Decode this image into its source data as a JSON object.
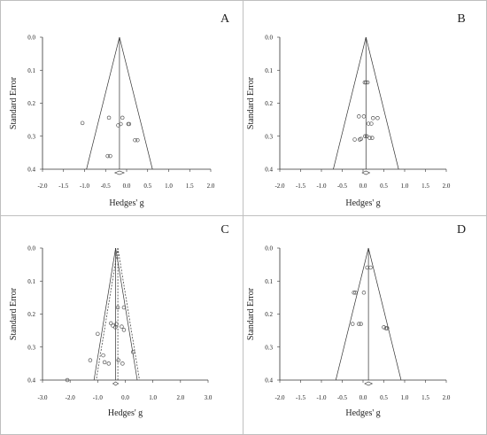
{
  "colors": {
    "border": "#bfbfbf",
    "axis": "#333333",
    "funnel": "#333333",
    "point": "#555555"
  },
  "chart_data": [
    {
      "type": "scatter",
      "panel": "A",
      "xlabel": "Hedges' g",
      "ylabel": "Standard Error",
      "xlim": [
        -2.0,
        2.0
      ],
      "ylim": [
        0.0,
        0.4
      ],
      "y_inverted": true,
      "xticks": [
        "-2.0",
        "-1.5",
        "-1.0",
        "-0.5",
        "0.0",
        "0.5",
        "1.0",
        "1.5",
        "2.0"
      ],
      "yticks": [
        "0.0",
        "0.1",
        "0.2",
        "0.3",
        "0.4"
      ],
      "funnel_center": -0.17,
      "funnel_style": "solid",
      "summary_estimate": -0.17,
      "summary_ci": [
        -0.28,
        -0.06
      ],
      "points": [
        {
          "x": -1.05,
          "y": 0.26
        },
        {
          "x": -0.42,
          "y": 0.244
        },
        {
          "x": -0.1,
          "y": 0.244
        },
        {
          "x": -0.14,
          "y": 0.263
        },
        {
          "x": -0.2,
          "y": 0.267
        },
        {
          "x": 0.04,
          "y": 0.263
        },
        {
          "x": 0.06,
          "y": 0.263
        },
        {
          "x": 0.2,
          "y": 0.312
        },
        {
          "x": 0.26,
          "y": 0.312
        },
        {
          "x": -0.45,
          "y": 0.36
        },
        {
          "x": -0.39,
          "y": 0.36
        }
      ]
    },
    {
      "type": "scatter",
      "panel": "B",
      "xlabel": "Hedges' g",
      "ylabel": "Standard Error",
      "xlim": [
        -2.0,
        2.0
      ],
      "ylim": [
        0.0,
        0.4
      ],
      "y_inverted": true,
      "xticks": [
        "-2.0",
        "-1.5",
        "-1.0",
        "-0.5",
        "0.0",
        "0.5",
        "1.0",
        "1.5",
        "2.0"
      ],
      "yticks": [
        "0.0",
        "0.1",
        "0.2",
        "0.3",
        "0.4"
      ],
      "funnel_center": 0.07,
      "funnel_style": "solid",
      "summary_estimate": 0.07,
      "summary_ci": [
        -0.02,
        0.16
      ],
      "points": [
        {
          "x": 0.04,
          "y": 0.137
        },
        {
          "x": 0.11,
          "y": 0.137
        },
        {
          "x": 0.07,
          "y": 0.137
        },
        {
          "x": -0.1,
          "y": 0.24
        },
        {
          "x": 0.02,
          "y": 0.24
        },
        {
          "x": 0.24,
          "y": 0.245
        },
        {
          "x": 0.35,
          "y": 0.245
        },
        {
          "x": 0.13,
          "y": 0.262
        },
        {
          "x": 0.2,
          "y": 0.262
        },
        {
          "x": 0.05,
          "y": 0.3
        },
        {
          "x": 0.09,
          "y": 0.3
        },
        {
          "x": -0.05,
          "y": 0.308
        },
        {
          "x": 0.16,
          "y": 0.305
        },
        {
          "x": 0.22,
          "y": 0.305
        },
        {
          "x": -0.2,
          "y": 0.31
        },
        {
          "x": -0.08,
          "y": 0.31
        }
      ]
    },
    {
      "type": "scatter",
      "panel": "C",
      "xlabel": "Hedges' g",
      "ylabel": "Standard Error",
      "xlim": [
        -3.0,
        3.0
      ],
      "ylim": [
        0.0,
        0.4
      ],
      "y_inverted": true,
      "xticks": [
        "-3.0",
        "-2.0",
        "-1.0",
        "0.0",
        "1.0",
        "2.0",
        "3.0"
      ],
      "yticks": [
        "0.0",
        "0.1",
        "0.2",
        "0.3",
        "0.4"
      ],
      "funnel_center": -0.35,
      "funnel_center_2": -0.27,
      "funnel_style": "solid-and-dashed",
      "summary_estimate": -0.35,
      "summary_ci": [
        -0.45,
        -0.25
      ],
      "points": [
        {
          "x": -0.27,
          "y": 0.18
        },
        {
          "x": -0.05,
          "y": 0.18
        },
        {
          "x": -0.52,
          "y": 0.228
        },
        {
          "x": -0.45,
          "y": 0.235
        },
        {
          "x": -0.32,
          "y": 0.23
        },
        {
          "x": -0.36,
          "y": 0.24
        },
        {
          "x": -0.13,
          "y": 0.238
        },
        {
          "x": -0.05,
          "y": 0.248
        },
        {
          "x": -1.0,
          "y": 0.26
        },
        {
          "x": -0.8,
          "y": 0.325
        },
        {
          "x": 0.28,
          "y": 0.315
        },
        {
          "x": -1.27,
          "y": 0.34
        },
        {
          "x": -0.75,
          "y": 0.346
        },
        {
          "x": -0.6,
          "y": 0.35
        },
        {
          "x": -0.25,
          "y": 0.34
        },
        {
          "x": -0.1,
          "y": 0.35
        },
        {
          "x": -2.1,
          "y": 0.4
        }
      ]
    },
    {
      "type": "scatter",
      "panel": "D",
      "xlabel": "Hedges' g",
      "ylabel": "Standard Error",
      "xlim": [
        -2.0,
        2.0
      ],
      "ylim": [
        0.0,
        0.4
      ],
      "y_inverted": true,
      "xticks": [
        "-2.0",
        "-1.5",
        "-1.0",
        "-0.5",
        "0.0",
        "0.5",
        "1.0",
        "1.5",
        "2.0"
      ],
      "yticks": [
        "0.0",
        "0.1",
        "0.2",
        "0.3",
        "0.4"
      ],
      "funnel_center": 0.13,
      "funnel_style": "solid",
      "summary_estimate": 0.13,
      "summary_ci": [
        0.04,
        0.22
      ],
      "points": [
        {
          "x": 0.1,
          "y": 0.059
        },
        {
          "x": 0.18,
          "y": 0.059
        },
        {
          "x": -0.22,
          "y": 0.135
        },
        {
          "x": -0.18,
          "y": 0.135
        },
        {
          "x": 0.02,
          "y": 0.135
        },
        {
          "x": -0.25,
          "y": 0.23
        },
        {
          "x": -0.1,
          "y": 0.23
        },
        {
          "x": -0.05,
          "y": 0.23
        },
        {
          "x": 0.5,
          "y": 0.24
        },
        {
          "x": 0.55,
          "y": 0.243
        },
        {
          "x": 0.58,
          "y": 0.243
        }
      ]
    }
  ]
}
